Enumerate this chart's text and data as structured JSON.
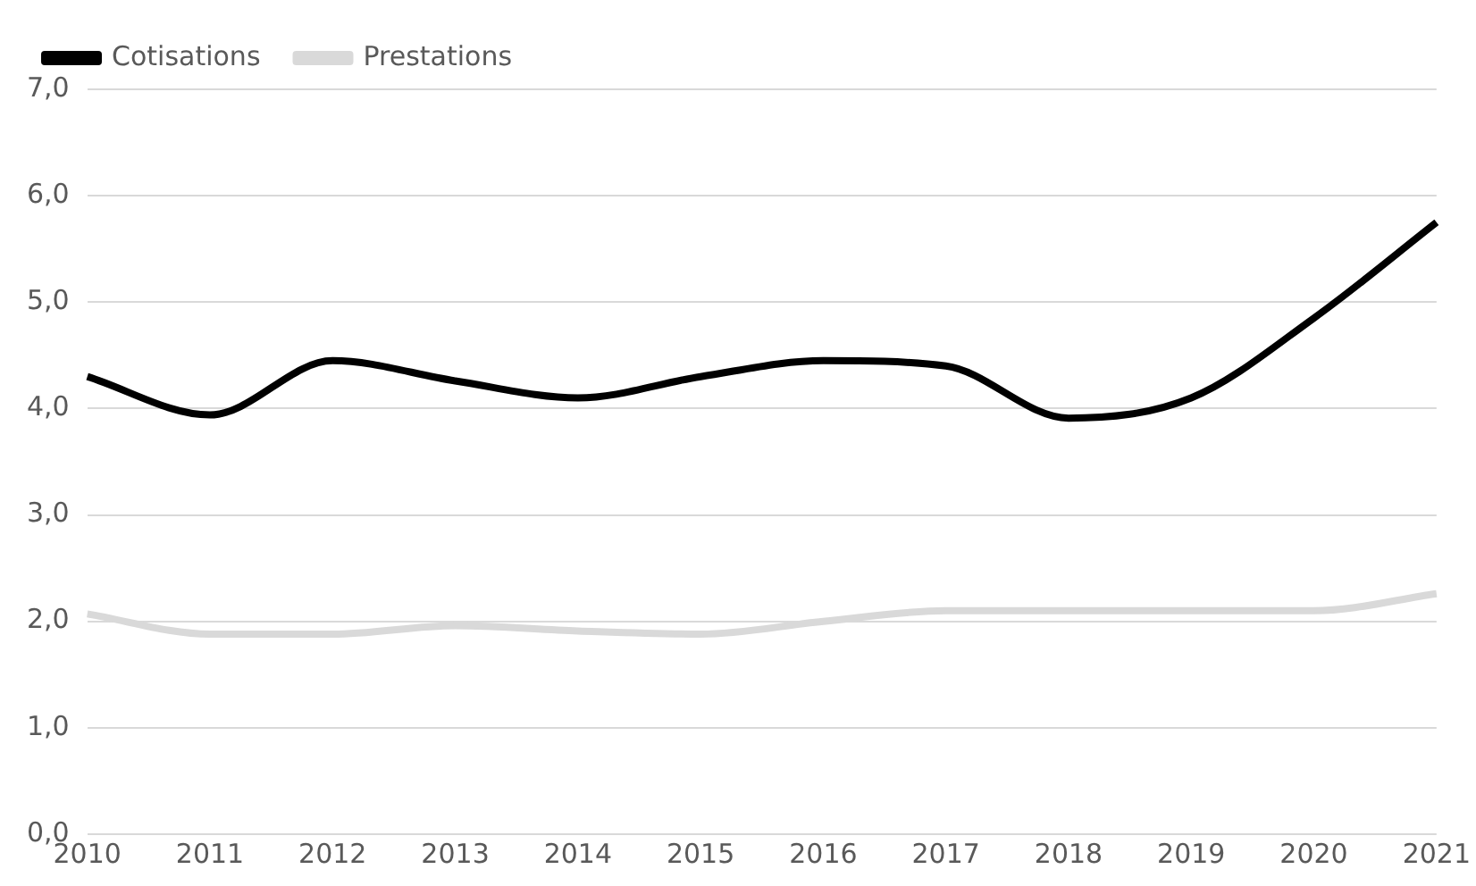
{
  "chart_data": {
    "type": "line",
    "categories": [
      "2010",
      "2011",
      "2012",
      "2013",
      "2014",
      "2015",
      "2016",
      "2017",
      "2018",
      "2019",
      "2020",
      "2021"
    ],
    "series": [
      {
        "name": "Cotisations",
        "color": "#000000",
        "values": [
          4.3,
          3.94,
          4.45,
          4.26,
          4.1,
          4.3,
          4.45,
          4.4,
          3.91,
          4.1,
          4.85,
          5.75
        ]
      },
      {
        "name": "Prestations",
        "color": "#d9d9d9",
        "values": [
          2.07,
          1.88,
          1.88,
          1.96,
          1.91,
          1.88,
          2.0,
          2.1,
          2.1,
          2.1,
          2.1,
          2.26
        ]
      }
    ],
    "ylim": [
      0,
      7
    ],
    "yticks": [
      {
        "value": 0,
        "label": "0,0"
      },
      {
        "value": 1,
        "label": "1,0"
      },
      {
        "value": 2,
        "label": "2,0"
      },
      {
        "value": 3,
        "label": "3,0"
      },
      {
        "value": 4,
        "label": "4,0"
      },
      {
        "value": 5,
        "label": "5,0"
      },
      {
        "value": 6,
        "label": "6,0"
      },
      {
        "value": 7,
        "label": "7,0"
      }
    ],
    "grid": "y",
    "legend": "top left",
    "marker": "none",
    "line_style": "solid"
  }
}
